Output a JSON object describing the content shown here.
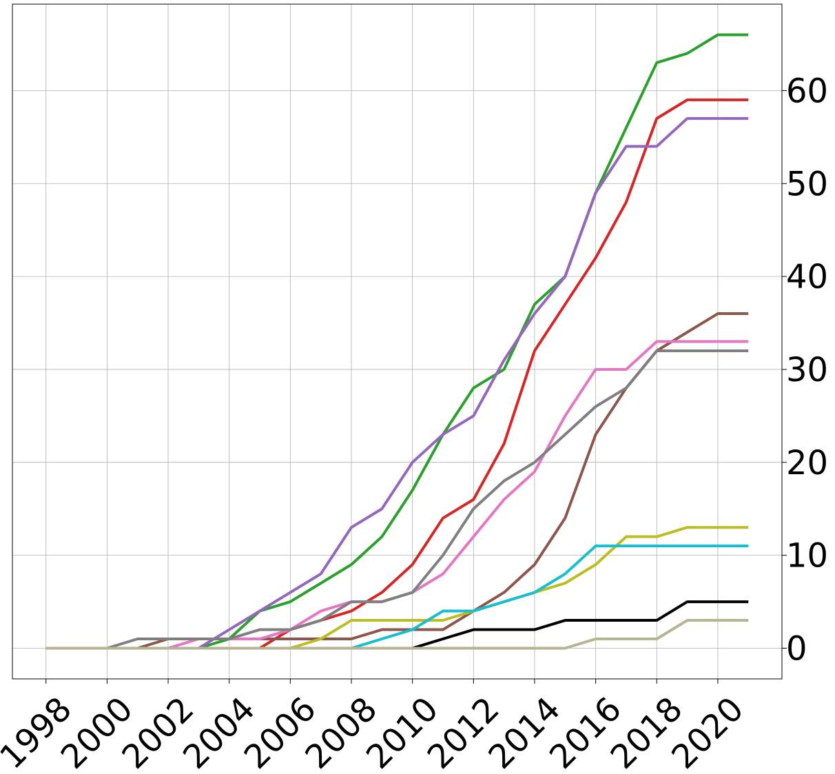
{
  "chart_data": {
    "type": "line",
    "title": "",
    "xlabel": "",
    "ylabel": "",
    "grid": true,
    "legend": "none",
    "y_axis_side": "right",
    "xlim": [
      1996.9,
      2022.1
    ],
    "ylim": [
      -3.3,
      69.3
    ],
    "x_ticks": [
      1998,
      2000,
      2002,
      2004,
      2006,
      2008,
      2010,
      2012,
      2014,
      2016,
      2018,
      2020
    ],
    "x_tick_labels": [
      "1998",
      "2000",
      "2002",
      "2004",
      "2006",
      "2008",
      "2010",
      "2012",
      "2014",
      "2016",
      "2018",
      "2020"
    ],
    "y_ticks": [
      0,
      10,
      20,
      30,
      40,
      50,
      60
    ],
    "y_tick_labels": [
      "0",
      "10",
      "20",
      "30",
      "40",
      "50",
      "60"
    ],
    "x": [
      1998,
      1999,
      2000,
      2001,
      2002,
      2003,
      2004,
      2005,
      2006,
      2007,
      2008,
      2009,
      2010,
      2011,
      2012,
      2013,
      2014,
      2015,
      2016,
      2017,
      2018,
      2019,
      2020,
      2021
    ],
    "series": [
      {
        "color": "#2ca02c",
        "values": [
          0,
          0,
          0,
          0,
          0,
          0,
          1,
          4,
          5,
          7,
          9,
          12,
          17,
          23,
          28,
          30,
          37,
          40,
          49,
          56,
          63,
          64,
          66,
          66
        ]
      },
      {
        "color": "#d62728",
        "values": [
          0,
          0,
          0,
          0,
          0,
          0,
          0,
          0,
          2,
          3,
          4,
          6,
          9,
          14,
          16,
          22,
          32,
          37,
          42,
          48,
          57,
          59,
          59,
          59
        ]
      },
      {
        "color": "#9467bd",
        "values": [
          0,
          0,
          0,
          0,
          0,
          0,
          2,
          4,
          6,
          8,
          13,
          15,
          20,
          23,
          25,
          31,
          36,
          40,
          49,
          54,
          54,
          57,
          57,
          57
        ]
      },
      {
        "color": "#8c564b",
        "values": [
          0,
          0,
          0,
          0,
          1,
          1,
          1,
          1,
          1,
          1,
          1,
          2,
          2,
          2,
          4,
          6,
          9,
          14,
          23,
          28,
          32,
          34,
          36,
          36
        ]
      },
      {
        "color": "#e377c2",
        "values": [
          0,
          0,
          0,
          0,
          0,
          1,
          1,
          1,
          2,
          4,
          5,
          5,
          6,
          8,
          12,
          16,
          19,
          25,
          30,
          30,
          33,
          33,
          33,
          33
        ]
      },
      {
        "color": "#7f7f7f",
        "values": [
          0,
          0,
          0,
          1,
          1,
          1,
          1,
          2,
          2,
          3,
          5,
          5,
          6,
          10,
          15,
          18,
          20,
          23,
          26,
          28,
          32,
          32,
          32,
          32
        ]
      },
      {
        "color": "#bcbd22",
        "values": [
          0,
          0,
          0,
          0,
          0,
          0,
          0,
          0,
          0,
          1,
          3,
          3,
          3,
          3,
          4,
          5,
          6,
          7,
          9,
          12,
          12,
          13,
          13,
          13
        ]
      },
      {
        "color": "#17becf",
        "values": [
          0,
          0,
          0,
          0,
          0,
          0,
          0,
          0,
          0,
          0,
          0,
          1,
          2,
          4,
          4,
          5,
          6,
          8,
          11,
          11,
          11,
          11,
          11,
          11
        ]
      },
      {
        "color": "#000000",
        "values": [
          0,
          0,
          0,
          0,
          0,
          0,
          0,
          0,
          0,
          0,
          0,
          0,
          0,
          1,
          2,
          2,
          2,
          3,
          3,
          3,
          3,
          5,
          5,
          5
        ]
      },
      {
        "color": "#b5b593",
        "values": [
          0,
          0,
          0,
          0,
          0,
          0,
          0,
          0,
          0,
          0,
          0,
          0,
          0,
          0,
          0,
          0,
          0,
          0,
          1,
          1,
          1,
          3,
          3,
          3
        ]
      }
    ]
  }
}
